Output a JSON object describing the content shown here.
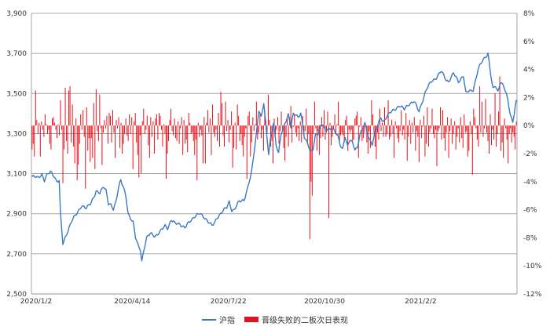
{
  "chart_data": {
    "type": "bar+line",
    "title": "",
    "x_ticks": [
      "2020/1/2",
      "2020/4/14",
      "2020/7/22",
      "2020/10/30",
      "2021/2/2"
    ],
    "y_left": {
      "ticks": [
        "2,500",
        "2,700",
        "2,900",
        "3,100",
        "3,300",
        "3,500",
        "3,700",
        "3,900"
      ],
      "lim": [
        2500,
        3900
      ]
    },
    "y_right": {
      "ticks": [
        "-12%",
        "-10%",
        "-8%",
        "-6%",
        "-4%",
        "-2%",
        "0%",
        "2%",
        "4%",
        "6%",
        "8%"
      ],
      "lim": [
        -12,
        8
      ]
    },
    "grid": true,
    "legend_position": "bottom",
    "series": [
      {
        "name": "沪指",
        "type": "line",
        "axis": "left",
        "color": "#3a78c3",
        "anchors": [
          [
            0,
            3085
          ],
          [
            5,
            3080
          ],
          [
            8,
            3100
          ],
          [
            10,
            3065
          ],
          [
            12,
            3090
          ],
          [
            15,
            3110
          ],
          [
            18,
            3090
          ],
          [
            20,
            3060
          ],
          [
            22,
            3065
          ],
          [
            23,
            2900
          ],
          [
            25,
            2750
          ],
          [
            28,
            2800
          ],
          [
            32,
            2860
          ],
          [
            36,
            2900
          ],
          [
            40,
            2940
          ],
          [
            44,
            2925
          ],
          [
            48,
            2960
          ],
          [
            52,
            3010
          ],
          [
            55,
            3000
          ],
          [
            58,
            3040
          ],
          [
            60,
            3020
          ],
          [
            62,
            2950
          ],
          [
            64,
            2940
          ],
          [
            66,
            2920
          ],
          [
            68,
            2960
          ],
          [
            70,
            3030
          ],
          [
            72,
            3070
          ],
          [
            74,
            3030
          ],
          [
            76,
            2990
          ],
          [
            78,
            2900
          ],
          [
            82,
            2860
          ],
          [
            84,
            2780
          ],
          [
            86,
            2740
          ],
          [
            88,
            2720
          ],
          [
            89,
            2665
          ],
          [
            91,
            2730
          ],
          [
            93,
            2780
          ],
          [
            96,
            2800
          ],
          [
            100,
            2790
          ],
          [
            104,
            2810
          ],
          [
            108,
            2840
          ],
          [
            110,
            2830
          ],
          [
            113,
            2870
          ],
          [
            116,
            2850
          ],
          [
            120,
            2850
          ],
          [
            124,
            2830
          ],
          [
            128,
            2860
          ],
          [
            132,
            2890
          ],
          [
            136,
            2900
          ],
          [
            140,
            2880
          ],
          [
            142,
            2870
          ],
          [
            146,
            2840
          ],
          [
            148,
            2850
          ],
          [
            150,
            2880
          ],
          [
            154,
            2910
          ],
          [
            158,
            2930
          ],
          [
            160,
            2960
          ],
          [
            162,
            2920
          ],
          [
            164,
            2920
          ],
          [
            168,
            2960
          ],
          [
            172,
            2970
          ],
          [
            175,
            3030
          ],
          [
            178,
            3100
          ],
          [
            180,
            3200
          ],
          [
            182,
            3300
          ],
          [
            184,
            3420
          ],
          [
            186,
            3380
          ],
          [
            188,
            3450
          ],
          [
            190,
            3320
          ],
          [
            192,
            3200
          ],
          [
            194,
            3300
          ],
          [
            196,
            3350
          ],
          [
            198,
            3240
          ],
          [
            200,
            3200
          ],
          [
            202,
            3300
          ],
          [
            205,
            3350
          ],
          [
            208,
            3390
          ],
          [
            210,
            3330
          ],
          [
            212,
            3400
          ],
          [
            214,
            3400
          ],
          [
            216,
            3380
          ],
          [
            218,
            3400
          ],
          [
            221,
            3280
          ],
          [
            224,
            3250
          ],
          [
            226,
            3210
          ],
          [
            228,
            3220
          ],
          [
            230,
            3290
          ],
          [
            232,
            3300
          ],
          [
            234,
            3340
          ],
          [
            236,
            3350
          ],
          [
            238,
            3310
          ],
          [
            240,
            3320
          ],
          [
            242,
            3320
          ],
          [
            244,
            3330
          ],
          [
            246,
            3310
          ],
          [
            248,
            3290
          ],
          [
            250,
            3240
          ],
          [
            252,
            3220
          ],
          [
            254,
            3290
          ],
          [
            256,
            3240
          ],
          [
            258,
            3270
          ],
          [
            260,
            3250
          ],
          [
            262,
            3220
          ],
          [
            264,
            3230
          ],
          [
            266,
            3300
          ],
          [
            268,
            3320
          ],
          [
            270,
            3350
          ],
          [
            272,
            3300
          ],
          [
            274,
            3270
          ],
          [
            276,
            3250
          ],
          [
            278,
            3300
          ],
          [
            280,
            3330
          ],
          [
            283,
            3380
          ],
          [
            285,
            3360
          ],
          [
            287,
            3380
          ],
          [
            290,
            3400
          ],
          [
            294,
            3420
          ],
          [
            298,
            3440
          ],
          [
            302,
            3420
          ],
          [
            306,
            3450
          ],
          [
            310,
            3460
          ],
          [
            314,
            3410
          ],
          [
            316,
            3450
          ],
          [
            320,
            3520
          ],
          [
            324,
            3560
          ],
          [
            328,
            3580
          ],
          [
            332,
            3610
          ],
          [
            336,
            3570
          ],
          [
            338,
            3560
          ],
          [
            342,
            3600
          ],
          [
            346,
            3560
          ],
          [
            350,
            3590
          ],
          [
            352,
            3500
          ],
          [
            354,
            3510
          ],
          [
            358,
            3520
          ],
          [
            362,
            3620
          ],
          [
            366,
            3670
          ],
          [
            370,
            3700
          ],
          [
            372,
            3600
          ],
          [
            374,
            3520
          ],
          [
            376,
            3540
          ],
          [
            378,
            3510
          ],
          [
            380,
            3560
          ],
          [
            383,
            3530
          ],
          [
            386,
            3470
          ],
          [
            388,
            3400
          ],
          [
            390,
            3360
          ],
          [
            393,
            3460
          ]
        ],
        "n_points": 394
      },
      {
        "name": "晋级失败的二板次日表现",
        "type": "bar",
        "axis": "right",
        "color": "#e8101a",
        "values": [
          -1.7,
          -1.3,
          -2.2,
          2.5,
          0.4,
          -0.6,
          0.2,
          -2.2,
          0.3,
          -0.3,
          -0.8,
          0.8,
          0.1,
          -0.6,
          -0.3,
          -1.3,
          -1.7,
          0.5,
          0.6,
          0.2,
          -0.3,
          -0.9,
          0.1,
          -0.7,
          1.8,
          -0.3,
          -4.1,
          -1.7,
          2.7,
          -1.1,
          -2.0,
          2.5,
          2.8,
          -1.2,
          1.5,
          -1.5,
          -2.7,
          0.5,
          -3.9,
          -2.8,
          -1.3,
          0.8,
          -0.3,
          1.1,
          -0.8,
          -4.5,
          1.3,
          -1.8,
          -0.9,
          -2.6,
          -0.9,
          -2.3,
          1.6,
          -3.1,
          2.6,
          -0.4,
          -1.1,
          2.2,
          -0.2,
          -2.8,
          -0.5,
          0.4,
          -0.2,
          0.7,
          -1.3,
          0.9,
          0.7,
          -1.2,
          1.1,
          -0.5,
          -2.3,
          0.4,
          -0.2,
          0.6,
          -1.6,
          0.2,
          -2.0,
          -1.3,
          -0.6,
          0.5,
          -0.7,
          -1.1,
          0.8,
          -0.6,
          0.6,
          -3.1,
          0.3,
          0.9,
          -1.2,
          -2.1,
          -3.7,
          -0.7,
          -3.4,
          0.3,
          1.2,
          -0.6,
          -0.3,
          0.7,
          -1.4,
          -2.3,
          0.6,
          -0.8,
          0.3,
          -2.0,
          0.5,
          0.8,
          -1.0,
          0.9,
          0.7,
          -0.3,
          -1.5,
          0.1,
          -0.6,
          -3.8,
          -2.0,
          -1.1,
          0.4,
          1.2,
          -0.4,
          -0.7,
          0.5,
          -0.9,
          -1.1,
          0.3,
          -1.3,
          -0.2,
          0.6,
          -2.1,
          0.4,
          -1.3,
          -1.0,
          -1.9,
          0.9,
          0.2,
          -0.6,
          -0.5,
          -1.1,
          -2.1,
          -1.0,
          -3.9,
          0.2,
          -0.8,
          -0.3,
          -0.7,
          -2.7,
          0.6,
          -2.7,
          0.2,
          1.1,
          -0.5,
          0.5,
          -2.1,
          1.5,
          -0.5,
          -0.8,
          -0.3,
          -1.1,
          0.9,
          -1.5,
          2.4,
          1.6,
          -0.7,
          -1.5,
          1.7,
          -0.4,
          0.4,
          -1.2,
          -0.3,
          1.0,
          -3.0,
          -1.6,
          0.2,
          -1.7,
          1.5,
          0.7,
          -1.1,
          -0.6,
          -1.4,
          -2.2,
          -0.8,
          -0.2,
          -3.8,
          0.7,
          1.0,
          -2.2,
          -1.2,
          0.6,
          -0.4,
          0.1,
          1.7,
          -1.0,
          -0.5,
          0.8,
          -0.9,
          -0.3,
          -1.8,
          1.1,
          0.4,
          -0.6,
          2.2,
          0.4,
          -1.5,
          -1.1,
          -2.7,
          0.5,
          -0.9,
          -0.3,
          0.6,
          -1.3,
          -0.4,
          1.0,
          -0.4,
          -1.6,
          -2.5,
          -0.8,
          0.5,
          -1.5,
          0.6,
          1.4,
          -1.2,
          -0.1,
          0.8,
          -0.5,
          -0.8,
          -0.2,
          -1.1,
          0.3,
          -1.2,
          0.7,
          -0.7,
          -0.4,
          1.2,
          -1.3,
          -0.6,
          -8.1,
          -4.0,
          -5.0,
          -0.6,
          1.7,
          -0.2,
          -1.8,
          -0.4,
          -2.1,
          -0.9,
          0.6,
          -0.8,
          1.1,
          -1.0,
          -0.5,
          1.0,
          -6.6,
          0.2,
          -1.4,
          -0.8,
          -0.3,
          0.8,
          -0.6,
          0.1,
          1.7,
          -1.1,
          -0.7,
          -0.5,
          -0.7,
          -1.2,
          0.4,
          0.7,
          -1.8,
          -0.3,
          -0.5,
          -0.3,
          -1.1,
          -1.0,
          0.5,
          0.7,
          1.0,
          -2.3,
          -0.1,
          0.6,
          -1.1,
          -0.9,
          -0.5,
          0.1,
          -1.2,
          -2.0,
          -0.4,
          -1.6,
          1.8,
          0.8,
          -0.5,
          -1.5,
          -2.4,
          -0.5,
          -1.0,
          1.2,
          -0.4,
          0.2,
          -0.8,
          1.3,
          -0.8,
          -0.6,
          1.8,
          -1.0,
          -0.8,
          0.4,
          -0.6,
          -2.3,
          0.3,
          -0.2,
          -0.9,
          -1.2,
          -0.4,
          1.1,
          -0.7,
          -0.3,
          -1.0,
          0.9,
          -2.5,
          -0.8,
          0.4,
          -1.3,
          0.2,
          -0.5,
          0.6,
          -1.8,
          -0.4,
          -0.8,
          -2.6,
          0.4,
          -0.9,
          -0.1,
          0.7,
          -2.2,
          -1.3,
          1.3,
          -1.5,
          -0.5,
          -0.2,
          1.2,
          -0.6,
          -0.9,
          -0.3,
          -2.9,
          -0.4,
          -0.2,
          1.3,
          -1.0,
          1.1,
          -0.9,
          -1.8,
          -0.5,
          0.6,
          -2.3,
          -0.4,
          0.5,
          -1.3,
          -0.6,
          0.3,
          -1.7,
          -0.8,
          -0.2,
          -1.2,
          0.6,
          -0.9,
          -1.6,
          0.8,
          -0.5,
          -0.4,
          -2.2,
          -1.8,
          0.3,
          -0.6,
          -3.5,
          1.2,
          0.6,
          -0.2,
          -1.0,
          -1.5,
          2.8,
          -0.5,
          1.7,
          -0.8,
          -0.2,
          1.9,
          -0.5,
          -1.1,
          -2.0,
          0.8,
          -1.4,
          -0.3,
          -1.0,
          2.3,
          -1.5,
          -0.6,
          1.0,
          3.5,
          -1.8,
          -1.2,
          -2.3,
          0.5,
          -0.2,
          -1.0,
          -2.7,
          -0.6,
          -0.2,
          -1.2,
          -0.5,
          -0.8,
          -1.7,
          0.3
        ]
      }
    ]
  }
}
